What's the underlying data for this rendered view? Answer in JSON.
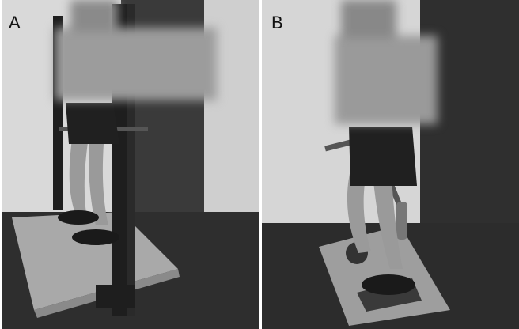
{
  "figure": {
    "panels": [
      {
        "label": "A"
      },
      {
        "label": "B"
      }
    ]
  },
  "colors": {
    "wall": "#d9d9d9",
    "floor": "#2e2e2e",
    "platform": "#a9a9a9",
    "rack": "#1e1e1e",
    "clothing": "#202020",
    "skin": "#9a9a9a"
  }
}
